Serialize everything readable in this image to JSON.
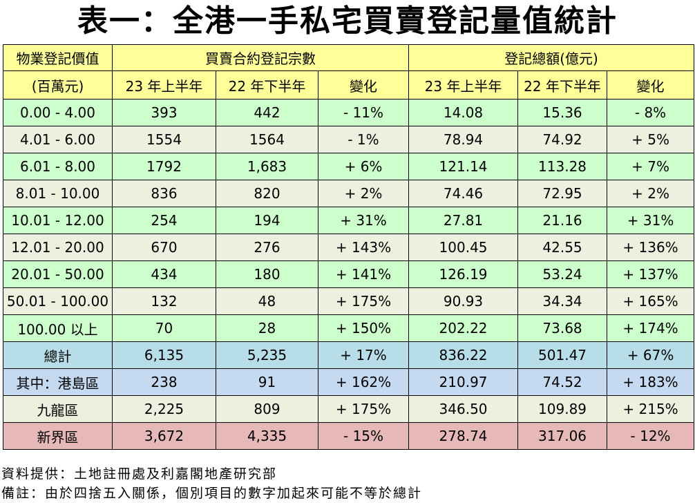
{
  "title": "表一：全港一手私宅買賣登記量值統計",
  "table": {
    "col1_header_line1": "物業登記價值",
    "col1_header_line2": "(百萬元)",
    "group1_header": "買賣合約登記宗數",
    "group2_header": "登記總額(億元)",
    "sub_headers": [
      "23 年上半年",
      "22 年下半年",
      "變化",
      "23 年上半年",
      "22 年下半年",
      "變化"
    ],
    "rows": [
      {
        "range": "0.00 - 4.00",
        "c1": "393",
        "c2": "442",
        "c3": "- 11%",
        "c4": "14.08",
        "c5": "15.36",
        "c6": "- 8%"
      },
      {
        "range": "4.01 - 6.00",
        "c1": "1554",
        "c2": "1564",
        "c3": "- 1%",
        "c4": "78.94",
        "c5": "74.92",
        "c6": "+ 5%"
      },
      {
        "range": "6.01 - 8.00",
        "c1": "1792",
        "c2": "1,683",
        "c3": "+ 6%",
        "c4": "121.14",
        "c5": "113.28",
        "c6": "+ 7%"
      },
      {
        "range": "8.01 - 10.00",
        "c1": "836",
        "c2": "820",
        "c3": "+ 2%",
        "c4": "74.46",
        "c5": "72.95",
        "c6": "+ 2%"
      },
      {
        "range": "10.01 - 12.00",
        "c1": "254",
        "c2": "194",
        "c3": "+ 31%",
        "c4": "27.81",
        "c5": "21.16",
        "c6": "+ 31%"
      },
      {
        "range": "12.01 - 20.00",
        "c1": "670",
        "c2": "276",
        "c3": "+ 143%",
        "c4": "100.45",
        "c5": "42.55",
        "c6": "+ 136%"
      },
      {
        "range": "20.01 - 50.00",
        "c1": "434",
        "c2": "180",
        "c3": "+ 141%",
        "c4": "126.19",
        "c5": "53.24",
        "c6": "+ 137%"
      },
      {
        "range": "50.01 - 100.00",
        "c1": "132",
        "c2": "48",
        "c3": "+ 175%",
        "c4": "90.93",
        "c5": "34.34",
        "c6": "+ 165%"
      },
      {
        "range": "100.00  以上",
        "c1": "70",
        "c2": "28",
        "c3": "+ 150%",
        "c4": "202.22",
        "c5": "73.68",
        "c6": "+ 174%"
      }
    ],
    "total": {
      "label": "總計",
      "c1": "6,135",
      "c2": "5,235",
      "c3": "+ 17%",
      "c4": "836.22",
      "c5": "501.47",
      "c6": "+ 67%"
    },
    "hk_island": {
      "label": "其中：港島區",
      "c1": "238",
      "c2": "91",
      "c3": "+ 162%",
      "c4": "210.97",
      "c5": "74.52",
      "c6": "+ 183%"
    },
    "kowloon": {
      "label": "九龍區",
      "c1": "2,225",
      "c2": "809",
      "c3": "+ 175%",
      "c4": "346.50",
      "c5": "109.89",
      "c6": "+ 215%"
    },
    "new_territories": {
      "label": "新界區",
      "c1": "3,672",
      "c2": "4,335",
      "c3": "- 15%",
      "c4": "278.74",
      "c5": "317.06",
      "c6": "- 12%"
    }
  },
  "footer": {
    "source": "資料提供：土地註冊處及利嘉閣地產研究部",
    "note": "備註：由於四捨五入關係，個別項目的數字加起來可能不等於總計"
  }
}
